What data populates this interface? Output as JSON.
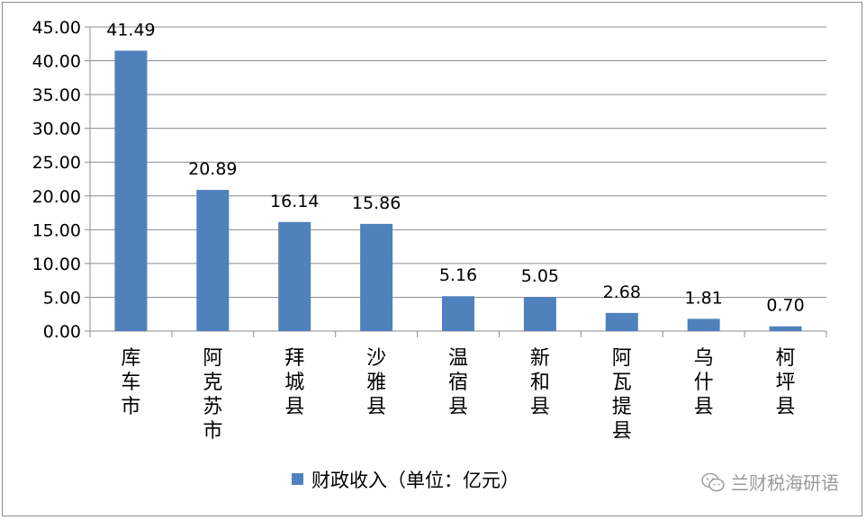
{
  "chart_data": {
    "type": "bar",
    "categories": [
      "库车市",
      "阿克苏市",
      "拜城县",
      "沙雅县",
      "温宿县",
      "新和县",
      "阿瓦提县",
      "乌什县",
      "柯坪县"
    ],
    "series": [
      {
        "name": "财政收入（单位：亿元）",
        "values": [
          41.49,
          20.89,
          16.14,
          15.86,
          5.16,
          5.05,
          2.68,
          1.81,
          0.7
        ]
      }
    ],
    "data_labels": [
      "41.49",
      "20.89",
      "16.14",
      "15.86",
      "5.16",
      "5.05",
      "2.68",
      "1.81",
      "0.70"
    ],
    "yticks": [
      "0.00",
      "5.00",
      "10.00",
      "15.00",
      "20.00",
      "25.00",
      "30.00",
      "35.00",
      "40.00",
      "45.00"
    ],
    "ylim": [
      0,
      45
    ],
    "grid": true,
    "legend_position": "bottom",
    "bar_color": "#4f81bd"
  },
  "watermark": {
    "text": "兰财税海研语",
    "icon": "wechat-icon"
  }
}
